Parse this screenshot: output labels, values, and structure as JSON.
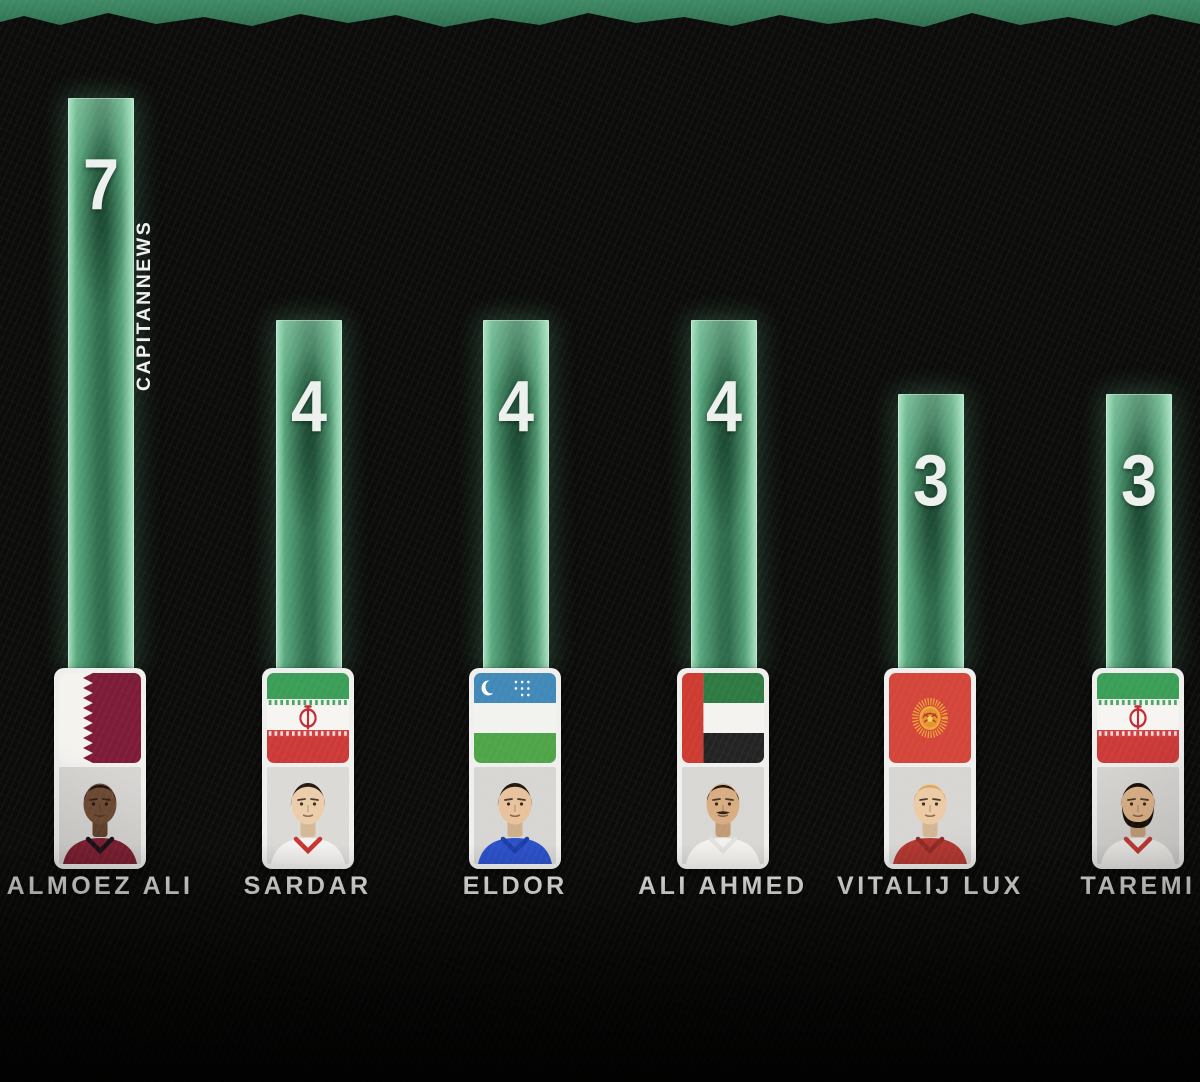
{
  "watermark": "CAPITANNEWS",
  "colors": {
    "background": "#0c0c0a",
    "top_strip": "#37805f",
    "bar_core": "#2e6a4c",
    "bar_edge": "#9edcb9",
    "value_text": "#edf1ee",
    "name_text": "#e9e9e7",
    "card_background": "#efefed"
  },
  "chart_data": {
    "type": "bar",
    "title": "",
    "categories": [
      "ALMOEZ ALI",
      "SARDAR",
      "ELDOR",
      "ALI AHMED",
      "VITALIJ LUX",
      "TAREMI"
    ],
    "values": [
      7,
      4,
      4,
      4,
      3,
      3
    ],
    "xlabel": "",
    "ylabel": "",
    "ylim": [
      0,
      7
    ],
    "grid": false,
    "legend": null,
    "players": [
      {
        "name": "ALMOEZ ALI",
        "goals": 7,
        "country": "Qatar",
        "flag": "qatar",
        "photo": {
          "skin": "#6e4a33",
          "hair": "#17120e",
          "jersey": "#7e1f33",
          "jersey_accent": "#1a1216",
          "background": "#d7d5d2",
          "facial_hair": "none",
          "hair_style": "short"
        }
      },
      {
        "name": "SARDAR",
        "goals": 4,
        "country": "Iran",
        "flag": "iran",
        "photo": {
          "skin": "#eccdaa",
          "hair": "#241a12",
          "jersey": "#f3f2f0",
          "jersey_accent": "#c8342e",
          "background": "#dcdad7",
          "facial_hair": "none",
          "hair_style": "full"
        }
      },
      {
        "name": "ELDOR",
        "goals": 4,
        "country": "Uzbekistan",
        "flag": "uzbekistan",
        "photo": {
          "skin": "#e7c29c",
          "hair": "#20160e",
          "jersey": "#2b50c8",
          "jersey_accent": "#1d3da6",
          "background": "#d8d6d3",
          "facial_hair": "none",
          "hair_style": "full"
        }
      },
      {
        "name": "ALI AHMED",
        "goals": 4,
        "country": "United Arab Emirates",
        "flag": "uae",
        "photo": {
          "skin": "#d8ad82",
          "hair": "#1c130b",
          "jersey": "#f2f1ee",
          "jersey_accent": "#e3e1dd",
          "background": "#d9d7d4",
          "facial_hair": "mustache",
          "hair_style": "short"
        }
      },
      {
        "name": "VITALIJ LUX",
        "goals": 3,
        "country": "Kyrgyzstan",
        "flag": "kyrgyzstan",
        "photo": {
          "skin": "#eccaa4",
          "hair": "#d3a964",
          "jersey": "#b23730",
          "jersey_accent": "#8f2a25",
          "background": "#d8d6d3",
          "facial_hair": "none",
          "hair_style": "short"
        }
      },
      {
        "name": "TAREMI",
        "goals": 3,
        "country": "Iran",
        "flag": "iran",
        "photo": {
          "skin": "#dcb287",
          "hair": "#181009",
          "jersey": "#f1efec",
          "jersey_accent": "#c23b33",
          "background": "#d7d5d2",
          "facial_hair": "beard",
          "hair_style": "full"
        }
      }
    ]
  }
}
